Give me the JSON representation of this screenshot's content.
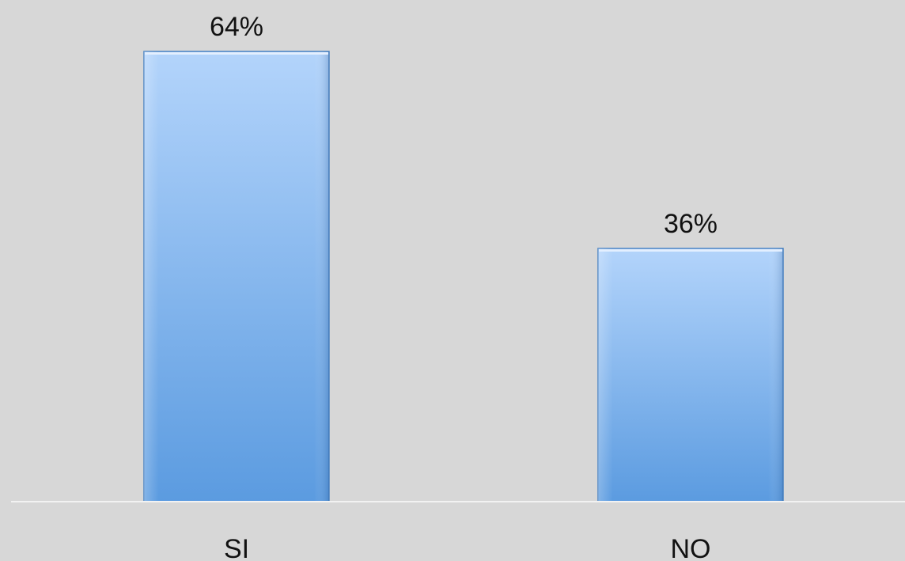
{
  "chart_data": {
    "type": "bar",
    "categories": [
      "SI",
      "NO"
    ],
    "values": [
      64,
      36
    ],
    "value_labels": [
      "64%",
      "36%"
    ],
    "unit": "%",
    "title": "",
    "xlabel": "",
    "ylabel": "",
    "ylim": [
      0,
      64
    ],
    "grid": false,
    "legend": "none"
  },
  "colors": {
    "background": "#d7d7d7",
    "bar_top": "#b3d4fb",
    "bar_bottom": "#5b9be0",
    "bar_edge": "#4a83c4",
    "axis_line": "#f2f2f2",
    "text": "#111111"
  }
}
